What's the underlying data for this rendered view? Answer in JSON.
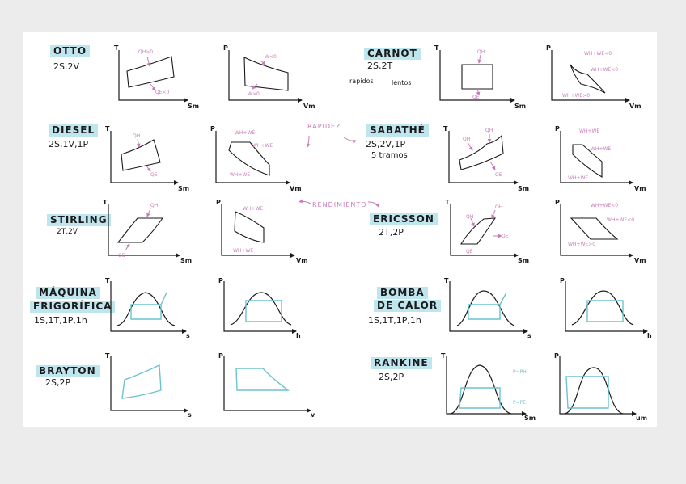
{
  "cycles": {
    "otto": {
      "name": "OTTO",
      "sub": "2S,2V"
    },
    "carnot": {
      "name": "CARNOT",
      "sub": "2S,2T",
      "note_fast": "rápidos",
      "note_slow": "lentos"
    },
    "diesel": {
      "name": "DIESEL",
      "sub": "2S,1V,1P"
    },
    "sabathe": {
      "name": "SABATHÉ",
      "sub": "2S,2V,1P",
      "sub2": "5 tramos"
    },
    "stirling": {
      "name": "STIRLING",
      "sub": "2T,2V"
    },
    "ericsson": {
      "name": "ERICSSON",
      "sub": "2T,2P"
    },
    "frigo": {
      "name1": "MÁQUINA",
      "name2": "FRIGORÍFICA",
      "sub": "1S,1T,1P,1h"
    },
    "bomba": {
      "name1": "BOMBA",
      "name2": "DE CALOR",
      "sub": "1S,1T,1P,1h"
    },
    "brayton": {
      "name": "BRAYTON",
      "sub": "2S,2P"
    },
    "rankine": {
      "name": "RANKINE",
      "sub": "2S,2P"
    }
  },
  "annotations": {
    "rapidez": "RAPIDEZ",
    "rendimiento": "RENDIMIENTO"
  },
  "axes": {
    "T": "T",
    "P": "P",
    "Sm": "Sm",
    "Vm": "Vm",
    "s": "s",
    "h": "h",
    "v": "v",
    "um": "um"
  },
  "labels": {
    "qh_gt0": "QH>0",
    "qe_lt0": "QE<0",
    "w_lt0": "W<0",
    "w_gt0": "W>0",
    "qh": "QH",
    "qe": "QE",
    "wh_we": "WH+WE",
    "wh_we_lt0": "WH+WE<0",
    "wh_we_gt0": "WH+WE>0",
    "p_ph": "P=PH",
    "p_pe": "P=PE"
  },
  "colors": {
    "ink": "#1a1a1a",
    "pink": "#c77db7",
    "teal": "#6cc3d1",
    "tag": "#bfe6ee"
  }
}
